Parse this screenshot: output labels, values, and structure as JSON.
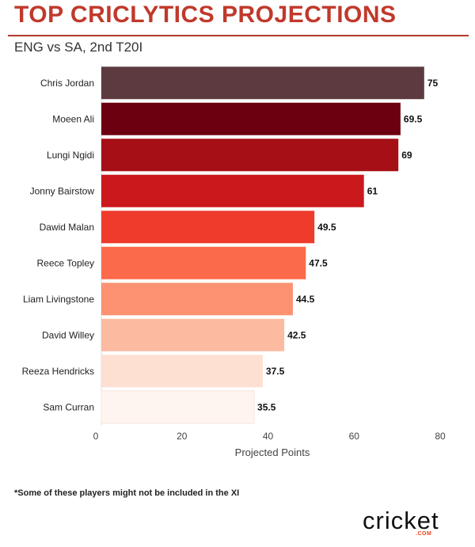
{
  "header": {
    "title": "TOP CRICLYTICS PROJECTIONS",
    "subtitle": "ENG vs SA, 2nd T20I"
  },
  "footer": {
    "note": "*Some of these players might not be included in the XI",
    "logo_text": "cricket",
    "logo_sub": ".COM"
  },
  "chart_data": {
    "type": "bar",
    "orientation": "horizontal",
    "categories": [
      "Chris Jordan",
      "Moeen Ali",
      "Lungi Ngidi",
      "Jonny Bairstow",
      "Dawid Malan",
      "Reece Topley",
      "Liam Livingstone",
      "David Willey",
      "Reeza Hendricks",
      "Sam Curran"
    ],
    "values": [
      75,
      69.5,
      69,
      61,
      49.5,
      47.5,
      44.5,
      42.5,
      37.5,
      35.5
    ],
    "value_labels": [
      "75",
      "69.5",
      "69",
      "61",
      "49.5",
      "47.5",
      "44.5",
      "42.5",
      "37.5",
      "35.5"
    ],
    "colors": [
      "#5c3a40",
      "#6d0010",
      "#a50f15",
      "#cb181d",
      "#ef3b2c",
      "#fb6a4a",
      "#fc9272",
      "#fcbba1",
      "#fee0d2",
      "#fff5f0"
    ],
    "xlabel": "Projected Points",
    "ylabel": "",
    "xlim": [
      0,
      80
    ],
    "xticks": [
      0,
      20,
      40,
      60,
      80
    ],
    "grid": false,
    "legend": "none"
  }
}
